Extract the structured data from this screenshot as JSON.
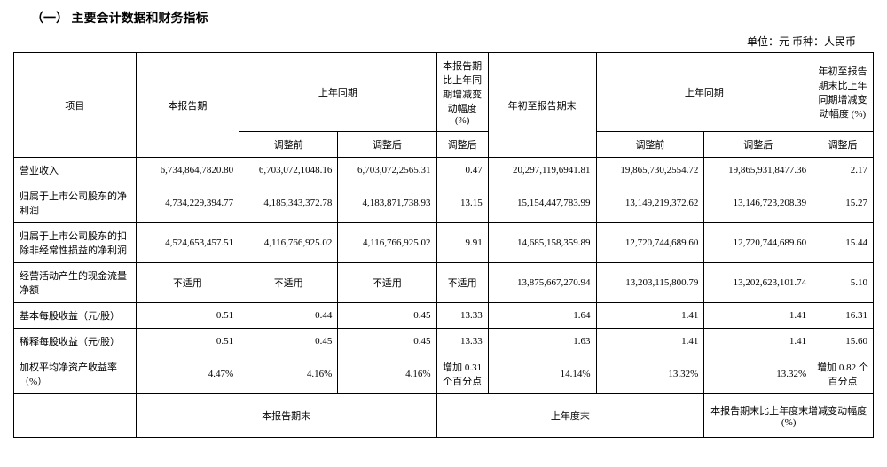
{
  "section_title": "（一）  主要会计数据和财务指标",
  "unit_label": "单位：元  币种：人民币",
  "headers": {
    "item": "项目",
    "current_period": "本报告期",
    "prior_period": "上年同期",
    "change_current": "本报告期比上年同期增减变动幅度 (%)",
    "ytd_end": "年初至报告期末",
    "prior_ytd": "上年同期",
    "change_ytd": "年初至报告期末比上年同期增减变动幅度 (%)",
    "before_adj": "调整前",
    "after_adj": "调整后",
    "after_adj2": "调整后"
  },
  "rows": [
    {
      "label": "营业收入",
      "c1": "6,734,864,7820.80",
      "c2": "6,703,072,1048.16",
      "c3": "6,703,072,2565.31",
      "c4": "0.47",
      "c5": "20,297,119,6941.81",
      "c6": "19,865,730,2554.72",
      "c7": "19,865,931,8477.36",
      "c8": "2.17"
    },
    {
      "label": "归属于上市公司股东的净利润",
      "c1": "4,734,229,394.77",
      "c2": "4,185,343,372.78",
      "c3": "4,183,871,738.93",
      "c4": "13.15",
      "c5": "15,154,447,783.99",
      "c6": "13,149,219,372.62",
      "c7": "13,146,723,208.39",
      "c8": "15.27"
    },
    {
      "label": "归属于上市公司股东的扣除非经常性损益的净利润",
      "c1": "4,524,653,457.51",
      "c2": "4,116,766,925.02",
      "c3": "4,116,766,925.02",
      "c4": "9.91",
      "c5": "14,685,158,359.89",
      "c6": "12,720,744,689.60",
      "c7": "12,720,744,689.60",
      "c8": "15.44"
    },
    {
      "label": "经营活动产生的现金流量净额",
      "c1": "不适用",
      "c2": "不适用",
      "c3": "不适用",
      "c4": "不适用",
      "c5": "13,875,667,270.94",
      "c6": "13,203,115,800.79",
      "c7": "13,202,623,101.74",
      "c8": "5.10"
    },
    {
      "label": "基本每股收益（元/股）",
      "c1": "0.51",
      "c2": "0.44",
      "c3": "0.45",
      "c4": "13.33",
      "c5": "1.64",
      "c6": "1.41",
      "c7": "1.41",
      "c8": "16.31"
    },
    {
      "label": "稀释每股收益（元/股）",
      "c1": "0.51",
      "c2": "0.45",
      "c3": "0.45",
      "c4": "13.33",
      "c5": "1.63",
      "c6": "1.41",
      "c7": "1.41",
      "c8": "15.60"
    },
    {
      "label": "加权平均净资产收益率（%）",
      "c1": "4.47%",
      "c2": "4.16%",
      "c3": "4.16%",
      "c4": "增加 0.31 个百分点",
      "c5": "14.14%",
      "c6": "13.32%",
      "c7": "13.32%",
      "c8": "增加 0.82 个百分点"
    }
  ],
  "footer": {
    "col1_blank": "",
    "current_period_end": "本报告期末",
    "prior_year_end": "上年度末",
    "change_footer": "本报告期末比上年度末增减变动幅度(%)"
  },
  "colors": {
    "text": "#000000",
    "border": "#000000",
    "background": "#ffffff"
  },
  "col_widths": {
    "label": "130px",
    "c1": "110px",
    "c2": "105px",
    "c3": "105px",
    "c4": "55px",
    "c5": "115px",
    "c6": "115px",
    "c7": "115px",
    "c8": "65px"
  }
}
